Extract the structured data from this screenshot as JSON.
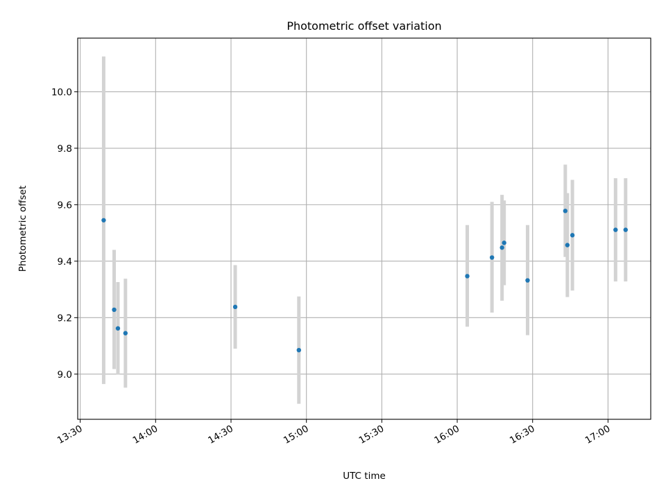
{
  "chart_data": {
    "type": "scatter",
    "title": "Photometric offset variation",
    "xlabel": "UTC time",
    "ylabel": "Photometric offset",
    "x_tick_labels": [
      "13:30",
      "14:00",
      "14:30",
      "15:00",
      "15:30",
      "16:00",
      "16:30",
      "17:00"
    ],
    "y_tick_labels": [
      "9.0",
      "9.2",
      "9.4",
      "9.6",
      "9.8",
      "10.0"
    ],
    "y_ticks": [
      9.0,
      9.2,
      9.4,
      9.6,
      9.8,
      10.0
    ],
    "xlim": [
      "13:29",
      "17:17"
    ],
    "ylim": [
      8.84,
      10.19
    ],
    "grid": true,
    "point_color": "#1f77b4",
    "errorbar_color": "#d3d3d3",
    "points": [
      {
        "x": "13:39:20",
        "y": 9.545,
        "ylow": 8.965,
        "yhigh": 10.125
      },
      {
        "x": "13:43:30",
        "y": 9.228,
        "ylow": 9.018,
        "yhigh": 9.44
      },
      {
        "x": "13:45:00",
        "y": 9.162,
        "ylow": 8.998,
        "yhigh": 9.326
      },
      {
        "x": "13:48:00",
        "y": 9.145,
        "ylow": 8.952,
        "yhigh": 9.338
      },
      {
        "x": "14:31:40",
        "y": 9.238,
        "ylow": 9.09,
        "yhigh": 9.386
      },
      {
        "x": "14:57:00",
        "y": 9.085,
        "ylow": 8.895,
        "yhigh": 9.275
      },
      {
        "x": "16:04:00",
        "y": 9.347,
        "ylow": 9.168,
        "yhigh": 9.528
      },
      {
        "x": "16:13:50",
        "y": 9.413,
        "ylow": 9.218,
        "yhigh": 9.61
      },
      {
        "x": "16:17:50",
        "y": 9.448,
        "ylow": 9.26,
        "yhigh": 9.635
      },
      {
        "x": "16:18:40",
        "y": 9.465,
        "ylow": 9.315,
        "yhigh": 9.615
      },
      {
        "x": "16:28:00",
        "y": 9.332,
        "ylow": 9.138,
        "yhigh": 9.528
      },
      {
        "x": "16:43:00",
        "y": 9.578,
        "ylow": 9.415,
        "yhigh": 9.742
      },
      {
        "x": "16:43:50",
        "y": 9.457,
        "ylow": 9.273,
        "yhigh": 9.641
      },
      {
        "x": "16:45:50",
        "y": 9.492,
        "ylow": 9.296,
        "yhigh": 9.688
      },
      {
        "x": "17:03:00",
        "y": 9.511,
        "ylow": 9.328,
        "yhigh": 9.694
      },
      {
        "x": "17:07:00",
        "y": 9.511,
        "ylow": 9.328,
        "yhigh": 9.694
      }
    ]
  }
}
